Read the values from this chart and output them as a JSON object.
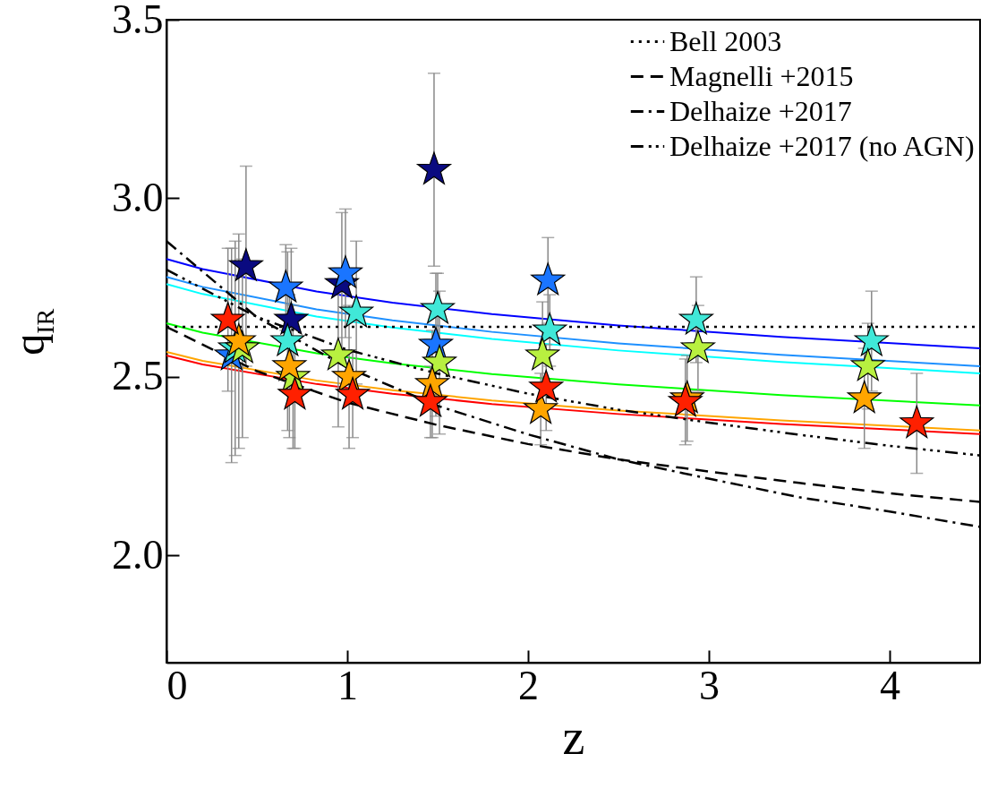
{
  "chart_data": {
    "type": "scatter",
    "xlabel": "z",
    "ylabel": "q$_{IR}$",
    "xlim": [
      0,
      4.5
    ],
    "ylim": [
      1.7,
      3.5
    ],
    "xticks": [
      0,
      1,
      2,
      3,
      4
    ],
    "yticks": [
      {
        "value": 2,
        "label": "2.0"
      },
      2.5,
      {
        "value": 3,
        "label": "3.0"
      },
      3.5
    ],
    "legend": "top right",
    "series": [
      {
        "type": "line",
        "color": "#0000ff",
        "x": [
          0,
          0.2,
          0.83,
          1.25,
          1.8,
          2.5,
          3.4,
          4.5
        ],
        "values": [
          2.83,
          2.802,
          2.739,
          2.708,
          2.676,
          2.644,
          2.612,
          2.58
        ]
      },
      {
        "type": "line",
        "color": "#1e90ff",
        "x": [
          0,
          0.2,
          0.83,
          1.25,
          1.8,
          2.5,
          3.4,
          4.5
        ],
        "values": [
          2.78,
          2.752,
          2.689,
          2.658,
          2.626,
          2.594,
          2.562,
          2.53
        ]
      },
      {
        "type": "line",
        "color": "#00ffff",
        "x": [
          0,
          0.2,
          0.83,
          1.25,
          1.8,
          2.5,
          3.4,
          4.5
        ],
        "values": [
          2.76,
          2.732,
          2.669,
          2.638,
          2.606,
          2.574,
          2.542,
          2.51
        ]
      },
      {
        "type": "line",
        "color": "#00ff00",
        "x": [
          0,
          0.2,
          0.83,
          1.25,
          1.8,
          2.5,
          3.4,
          4.5
        ],
        "values": [
          2.65,
          2.624,
          2.566,
          2.538,
          2.508,
          2.479,
          2.449,
          2.42
        ]
      },
      {
        "type": "line",
        "color": "#ffa500",
        "x": [
          0,
          0.2,
          0.83,
          1.25,
          1.8,
          2.5,
          3.4,
          4.5
        ],
        "values": [
          2.57,
          2.545,
          2.49,
          2.463,
          2.434,
          2.406,
          2.378,
          2.35
        ]
      },
      {
        "type": "line",
        "color": "#ff0000",
        "x": [
          0,
          0.2,
          0.83,
          1.25,
          1.8,
          2.5,
          3.4,
          4.5
        ],
        "values": [
          2.56,
          2.535,
          2.48,
          2.453,
          2.424,
          2.396,
          2.368,
          2.34
        ]
      },
      {
        "type": "line",
        "name": "Bell 2003",
        "color": "#000000",
        "line_style": "dotted",
        "x": [
          0,
          4.5
        ],
        "values": [
          2.64,
          2.64
        ]
      },
      {
        "type": "line",
        "name": "Magnelli +2015",
        "color": "#000000",
        "line_style": "dashed",
        "x": [
          0,
          0.5,
          1,
          1.5,
          2,
          2.5,
          3,
          3.5,
          4,
          4.5
        ],
        "values": [
          2.64,
          2.516,
          2.428,
          2.365,
          2.312,
          2.269,
          2.235,
          2.203,
          2.174,
          2.15
        ]
      },
      {
        "type": "line",
        "name": "Delhaize +2017",
        "color": "#000000",
        "line_style": "dashdot",
        "x": [
          0,
          0.5,
          1,
          1.5,
          2,
          2.5,
          3,
          3.5,
          4,
          4.5
        ],
        "values": [
          2.88,
          2.667,
          2.526,
          2.419,
          2.339,
          2.269,
          2.215,
          2.163,
          2.123,
          2.08
        ]
      },
      {
        "type": "line",
        "name": "Delhaize +2017 (no AGN)",
        "color": "#000000",
        "line_style": "dashdotdotdot",
        "x": [
          0,
          0.5,
          1,
          1.5,
          2,
          2.5,
          3,
          3.5,
          4,
          4.5
        ],
        "values": [
          2.8,
          2.668,
          2.576,
          2.509,
          2.453,
          2.408,
          2.372,
          2.338,
          2.307,
          2.28
        ]
      },
      {
        "marker": "star",
        "color": "#0a0a80",
        "x": [
          0.44,
          0.69,
          0.97,
          1.48
        ],
        "values": [
          2.81,
          2.66,
          2.76,
          3.08
        ],
        "errors": [
          0.28,
          0.2,
          0.2,
          0.27
        ]
      },
      {
        "marker": "star",
        "color": "#1a75ff",
        "x": [
          0.36,
          0.66,
          0.99,
          1.49,
          2.11
        ],
        "values": [
          2.56,
          2.75,
          2.79,
          2.59,
          2.77
        ],
        "errors": [
          0.3,
          0.12,
          0.18,
          0.2,
          0.12
        ]
      },
      {
        "marker": "star",
        "color": "#40e8d8",
        "x": [
          0.38,
          0.67,
          1.05,
          1.5,
          2.12,
          2.93,
          3.9
        ],
        "values": [
          2.58,
          2.6,
          2.68,
          2.69,
          2.63,
          2.66,
          2.6
        ],
        "errors": [
          0.3,
          0.25,
          0.2,
          0.1,
          0.1,
          0.12,
          0.14
        ]
      },
      {
        "marker": "star",
        "color": "#b8f040",
        "x": [
          0.42,
          0.7,
          0.95,
          1.51,
          2.08,
          2.94,
          3.88
        ],
        "values": [
          2.58,
          2.5,
          2.56,
          2.54,
          2.56,
          2.58,
          2.53
        ],
        "errors": [
          0.25,
          0.2,
          0.2,
          0.2,
          0.15,
          0.12,
          0.12
        ]
      },
      {
        "marker": "star",
        "color": "#ffa500",
        "x": [
          0.4,
          0.68,
          1.01,
          1.47,
          2.07,
          2.88,
          3.86
        ],
        "values": [
          2.6,
          2.53,
          2.5,
          2.48,
          2.41,
          2.44,
          2.44
        ],
        "errors": [
          0.3,
          0.2,
          0.2,
          0.15,
          0.1,
          0.12,
          0.14
        ]
      },
      {
        "marker": "star",
        "color": "#ff2000",
        "x": [
          0.34,
          0.71,
          1.03,
          1.46,
          2.1,
          2.87,
          4.15
        ],
        "values": [
          2.66,
          2.45,
          2.45,
          2.43,
          2.47,
          2.43,
          2.37
        ],
        "errors": [
          0.2,
          0.15,
          0.12,
          0.1,
          0.12,
          0.12,
          0.14
        ]
      }
    ]
  }
}
